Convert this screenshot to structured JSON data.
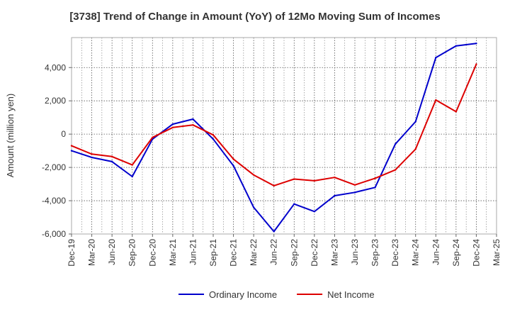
{
  "chart_data": {
    "type": "line",
    "title": "[3738]  Trend of Change in Amount (YoY) of 12Mo Moving Sum of Incomes",
    "xlabel": "",
    "ylabel": "Amount (million yen)",
    "ylim": [
      -6000,
      5800
    ],
    "yticks": [
      -6000,
      -4000,
      -2000,
      0,
      2000,
      4000
    ],
    "ytick_labels": [
      "-6,000",
      "-4,000",
      "-2,000",
      "0",
      "2,000",
      "4,000"
    ],
    "grid": true,
    "legend_position": "bottom-center",
    "categories": [
      "Dec-19",
      "Mar-20",
      "Jun-20",
      "Sep-20",
      "Dec-20",
      "Mar-21",
      "Jun-21",
      "Sep-21",
      "Dec-21",
      "Mar-22",
      "Jun-22",
      "Sep-22",
      "Dec-22",
      "Mar-23",
      "Jun-23",
      "Sep-23",
      "Dec-23",
      "Mar-24",
      "Jun-24",
      "Sep-24",
      "Dec-24",
      "Mar-25"
    ],
    "series": [
      {
        "name": "Ordinary Income",
        "color": "#0000cc",
        "values": [
          -1000,
          -1400,
          -1650,
          -2550,
          -300,
          600,
          900,
          -300,
          -1900,
          -4400,
          -5850,
          -4200,
          -4650,
          -3700,
          -3500,
          -3200,
          -600,
          750,
          4600,
          5300,
          5450,
          null
        ]
      },
      {
        "name": "Net Income",
        "color": "#dd0000",
        "values": [
          -700,
          -1200,
          -1350,
          -1850,
          -200,
          400,
          550,
          -50,
          -1500,
          -2450,
          -3100,
          -2700,
          -2800,
          -2600,
          -3050,
          -2650,
          -2150,
          -900,
          2050,
          1350,
          4200,
          null
        ]
      }
    ]
  }
}
